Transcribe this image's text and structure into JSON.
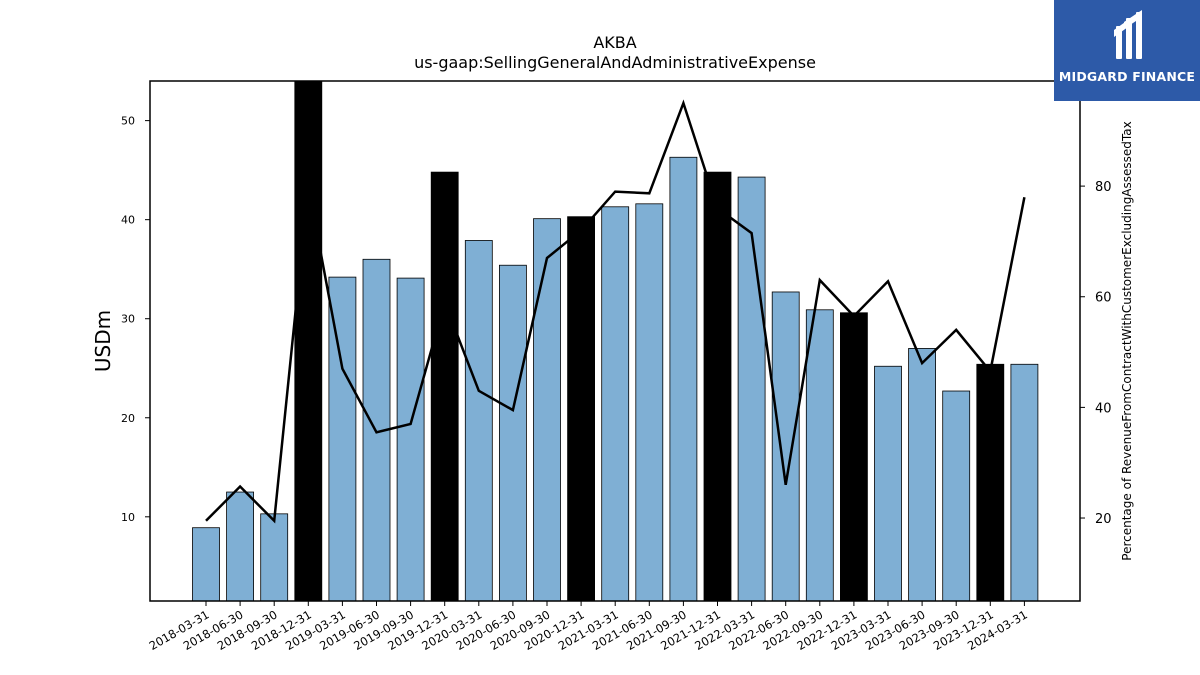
{
  "brand": {
    "name": "MIDGARD FINANCE",
    "color": "#2d5aa8"
  },
  "chart_data": {
    "type": "bar",
    "title": "AKBA",
    "subtitle": "us-gaap:SellingGeneralAndAdministrativeExpense",
    "ylabel": "USDm",
    "y2label": "Percentage of RevenueFromContractWithCustomerExcludingAssessedTax",
    "ylim": [
      1.5,
      54
    ],
    "y2lim": [
      5,
      99
    ],
    "yticks": [
      10,
      20,
      30,
      40,
      50
    ],
    "y2ticks": [
      20,
      40,
      60,
      80
    ],
    "categories": [
      "2018-03-31",
      "2018-06-30",
      "2018-09-30",
      "2018-12-31",
      "2019-03-31",
      "2019-06-30",
      "2019-09-30",
      "2019-12-31",
      "2020-03-31",
      "2020-06-30",
      "2020-09-30",
      "2020-12-31",
      "2021-03-31",
      "2021-06-30",
      "2021-09-30",
      "2021-12-31",
      "2022-03-31",
      "2022-06-30",
      "2022-09-30",
      "2022-12-31",
      "2023-03-31",
      "2023-06-30",
      "2023-09-30",
      "2023-12-31",
      "2024-03-31"
    ],
    "series": [
      {
        "kind": "bar",
        "axis": "left",
        "values": [
          8.9,
          12.5,
          10.3,
          54.5,
          34.2,
          36.0,
          34.1,
          44.8,
          37.9,
          35.4,
          40.1,
          40.3,
          41.3,
          41.6,
          46.3,
          44.8,
          44.3,
          32.7,
          30.9,
          30.6,
          25.2,
          27.0,
          22.7,
          25.4,
          25.4
        ],
        "highlight": [
          false,
          false,
          false,
          true,
          false,
          false,
          false,
          true,
          false,
          false,
          false,
          true,
          false,
          false,
          false,
          true,
          false,
          false,
          false,
          true,
          false,
          false,
          false,
          true,
          false
        ],
        "color": "#7fafd4",
        "highlight_color": "#000000"
      },
      {
        "kind": "line",
        "axis": "right",
        "values": [
          19.5,
          25.7,
          19.5,
          80.0,
          47.0,
          35.5,
          37.0,
          59.0,
          43.0,
          39.5,
          67.0,
          72.0,
          79.0,
          78.7,
          95.0,
          76.0,
          71.5,
          26.0,
          63.0,
          56.5,
          62.8,
          48.0,
          54.0,
          46.5,
          78.0
        ],
        "color": "#000000"
      }
    ],
    "grid": false
  }
}
